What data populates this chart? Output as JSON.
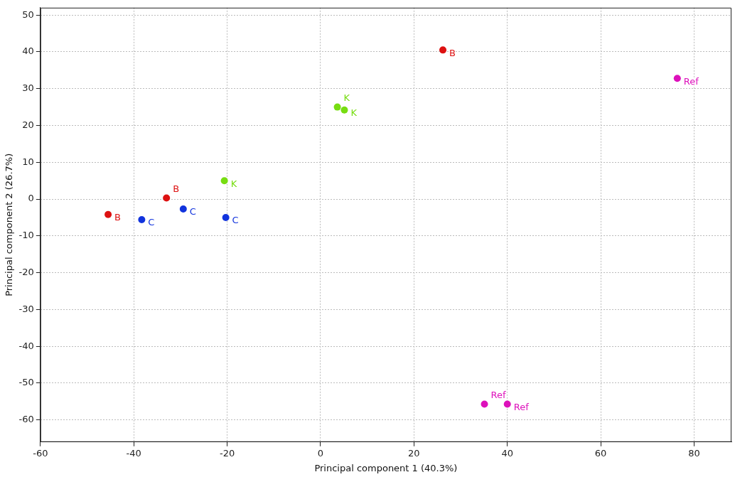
{
  "chart_data": {
    "type": "scatter",
    "xlabel": "Principal component 1 (40.3%)",
    "ylabel": "Principal component 2 (26.7%)",
    "xlim": [
      -60,
      88
    ],
    "ylim": [
      -66,
      52
    ],
    "xticks": [
      -60,
      -40,
      -20,
      0,
      20,
      40,
      60,
      80
    ],
    "yticks": [
      -60,
      -50,
      -40,
      -30,
      -20,
      -10,
      0,
      10,
      20,
      30,
      40,
      50
    ],
    "grid": true,
    "legend": false,
    "marker": "circle",
    "series": [
      {
        "name": "B",
        "color": "#dd1111",
        "x": [
          -45.5,
          -33.0,
          26.2
        ],
        "values": [
          -4.2,
          0.3,
          40.5
        ]
      },
      {
        "name": "C",
        "color": "#1133dd",
        "x": [
          -38.3,
          -29.4,
          -20.3
        ],
        "values": [
          -5.6,
          -2.7,
          -5.0
        ]
      },
      {
        "name": "K",
        "color": "#77dd11",
        "x": [
          -20.6,
          3.6,
          5.1
        ],
        "values": [
          5.0,
          25.0,
          24.2
        ]
      },
      {
        "name": "Ref",
        "color": "#dd11bb",
        "x": [
          76.4,
          35.1,
          40.0
        ],
        "values": [
          32.8,
          -55.7,
          -55.7
        ]
      }
    ]
  }
}
